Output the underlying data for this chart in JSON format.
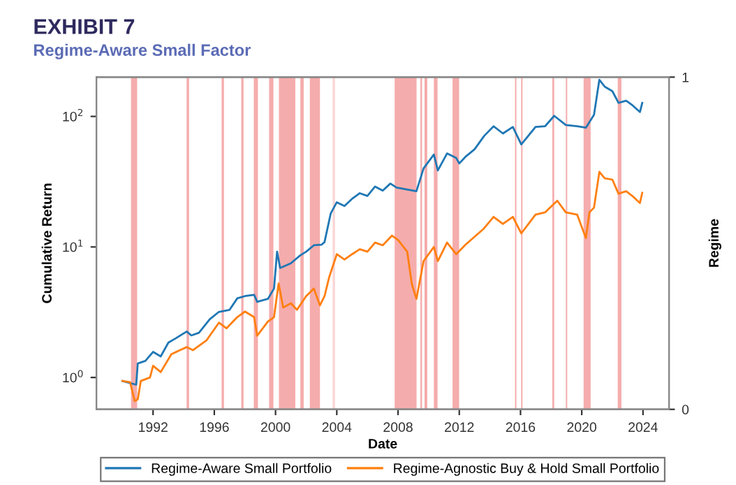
{
  "chart_data": {
    "type": "line",
    "title": "EXHIBIT 7",
    "subtitle": "Regime-Aware Small Factor",
    "xlabel": "Date",
    "ylabel": "Cumulative Return",
    "y2label": "Regime",
    "log": "y",
    "xlim": [
      1988.3,
      2025.7
    ],
    "xticks": [
      1992,
      1996,
      2000,
      2004,
      2008,
      2012,
      2016,
      2020,
      2024
    ],
    "ylim": [
      0.57,
      200
    ],
    "yticks": [
      {
        "value": 1,
        "label": "10$^{0}$"
      },
      {
        "value": 10,
        "label": "10$^{1}$"
      },
      {
        "value": 100,
        "label": "10$^{2}$"
      }
    ],
    "y2lim": [
      0,
      1
    ],
    "y2ticks": [
      0,
      1
    ],
    "grid": false,
    "legend": "bottom",
    "line_style": "solid",
    "marker": "none",
    "series": [
      {
        "name": "Regime-Aware Small Portfolio",
        "color": "#1f77b4",
        "x": [
          1990.0,
          1990.9,
          1991.0,
          1991.5,
          1992.0,
          1992.5,
          1993.0,
          1993.5,
          1994.2,
          1994.5,
          1995.0,
          1995.7,
          1996.3,
          1997.0,
          1997.5,
          1998.0,
          1998.6,
          1998.8,
          1999.5,
          1999.9,
          2000.1,
          2000.3,
          2001.0,
          2001.6,
          2002.0,
          2002.5,
          2003.0,
          2003.2,
          2003.6,
          2004.0,
          2004.5,
          2005.0,
          2005.5,
          2006.0,
          2006.5,
          2007.0,
          2007.5,
          2007.9,
          2009.2,
          2009.67,
          2010.34,
          2010.6,
          2011.2,
          2011.8,
          2012.0,
          2012.4,
          2013.0,
          2013.63,
          2014.24,
          2014.85,
          2015.5,
          2016.05,
          2016.98,
          2017.6,
          2018.2,
          2018.96,
          2019.7,
          2020.27,
          2020.8,
          2021.15,
          2021.5,
          2022.0,
          2022.4,
          2022.9,
          2023.3,
          2023.8,
          2023.95
        ],
        "values": [
          0.94,
          0.88,
          1.28,
          1.34,
          1.57,
          1.45,
          1.85,
          2.0,
          2.25,
          2.1,
          2.2,
          2.79,
          3.18,
          3.3,
          4.04,
          4.2,
          4.3,
          3.8,
          4.0,
          4.8,
          9.2,
          6.9,
          7.5,
          8.6,
          9.2,
          10.3,
          10.4,
          10.9,
          18,
          22,
          20.6,
          23.4,
          25.8,
          24.6,
          29,
          27,
          30.6,
          28.5,
          26.7,
          40,
          51,
          38.6,
          52,
          48,
          43.6,
          49,
          56,
          71,
          84,
          74,
          83,
          61,
          83,
          84,
          101,
          86,
          84,
          82,
          103,
          191,
          169,
          156,
          127,
          132,
          122,
          108,
          127
        ]
      },
      {
        "name": "Regime-Agnostic Buy & Hold Small Portfolio",
        "color": "#ff7f0e",
        "x": [
          1990.0,
          1990.5,
          1990.8,
          1991.0,
          1991.2,
          1991.8,
          1992.0,
          1992.5,
          1993.2,
          1994.2,
          1994.6,
          1995.5,
          1996.3,
          1996.8,
          1997.5,
          1998.0,
          1998.6,
          1998.8,
          1999.5,
          1999.9,
          2000.2,
          2000.5,
          2001.0,
          2001.4,
          2002.0,
          2002.5,
          2002.9,
          2003.2,
          2003.5,
          2004.0,
          2004.5,
          2005.0,
          2005.5,
          2006.0,
          2006.5,
          2007.0,
          2007.6,
          2008.0,
          2008.6,
          2008.9,
          2009.2,
          2009.67,
          2010.34,
          2010.6,
          2011.2,
          2011.8,
          2012.4,
          2013.6,
          2014.24,
          2014.85,
          2015.5,
          2016.05,
          2016.98,
          2017.6,
          2018.4,
          2018.96,
          2019.7,
          2020.27,
          2020.5,
          2020.8,
          2021.15,
          2021.5,
          2022.0,
          2022.4,
          2022.9,
          2023.3,
          2023.8,
          2023.95
        ],
        "values": [
          0.94,
          0.92,
          0.66,
          0.68,
          0.94,
          1.0,
          1.23,
          1.1,
          1.51,
          1.71,
          1.62,
          1.93,
          2.63,
          2.38,
          2.9,
          3.2,
          2.9,
          2.09,
          2.68,
          2.9,
          5.25,
          3.43,
          3.7,
          3.3,
          4.2,
          4.8,
          3.57,
          4.2,
          5.85,
          8.8,
          8.0,
          8.8,
          9.6,
          9.2,
          10.8,
          10.3,
          12.2,
          11.3,
          9.2,
          5.2,
          4.0,
          7.8,
          10,
          7.8,
          10.8,
          8.8,
          10.4,
          13.8,
          17,
          15,
          17,
          12.7,
          17.7,
          18.4,
          22.6,
          18.4,
          17.7,
          11.7,
          18.4,
          20,
          37.6,
          33.6,
          32.8,
          25.6,
          26.7,
          24.6,
          21.7,
          26
        ]
      }
    ],
    "bands": [
      {
        "axis": "x",
        "from": 1990.56,
        "to": 1990.96,
        "color": "#f4a3a3"
      },
      {
        "axis": "x",
        "from": 1994.19,
        "to": 1994.35,
        "color": "#f4a3a3"
      },
      {
        "axis": "x",
        "from": 1996.48,
        "to": 1996.63,
        "color": "#f4a3a3"
      },
      {
        "axis": "x",
        "from": 1997.76,
        "to": 1997.91,
        "color": "#f4a3a3"
      },
      {
        "axis": "x",
        "from": 1998.58,
        "to": 1998.85,
        "color": "#f4a3a3"
      },
      {
        "axis": "x",
        "from": 1999.58,
        "to": 1999.86,
        "color": "#f4a3a3"
      },
      {
        "axis": "x",
        "from": 2000.22,
        "to": 2001.29,
        "color": "#f4a3a3"
      },
      {
        "axis": "x",
        "from": 2001.62,
        "to": 2001.84,
        "color": "#f4a3a3"
      },
      {
        "axis": "x",
        "from": 2002.24,
        "to": 2002.9,
        "color": "#f4a3a3"
      },
      {
        "axis": "x",
        "from": 2003.73,
        "to": 2003.88,
        "color": "#f9cfcf"
      },
      {
        "axis": "x",
        "from": 2007.78,
        "to": 2009.21,
        "color": "#f4a3a3"
      },
      {
        "axis": "x",
        "from": 2009.46,
        "to": 2009.57,
        "color": "#f4a3a3"
      },
      {
        "axis": "x",
        "from": 2009.73,
        "to": 2009.91,
        "color": "#f4a3a3"
      },
      {
        "axis": "x",
        "from": 2010.34,
        "to": 2010.58,
        "color": "#f4a3a3"
      },
      {
        "axis": "x",
        "from": 2011.56,
        "to": 2011.99,
        "color": "#f4a3a3"
      },
      {
        "axis": "x",
        "from": 2015.64,
        "to": 2015.73,
        "color": "#f4a3a3"
      },
      {
        "axis": "x",
        "from": 2016.04,
        "to": 2016.13,
        "color": "#f4a3a3"
      },
      {
        "axis": "x",
        "from": 2018.08,
        "to": 2018.2,
        "color": "#f4a3a3"
      },
      {
        "axis": "x",
        "from": 2018.96,
        "to": 2019.05,
        "color": "#f4a3a3"
      },
      {
        "axis": "x",
        "from": 2020.12,
        "to": 2020.58,
        "color": "#f4a3a3"
      },
      {
        "axis": "x",
        "from": 2022.35,
        "to": 2022.59,
        "color": "#f4a3a3"
      }
    ]
  }
}
